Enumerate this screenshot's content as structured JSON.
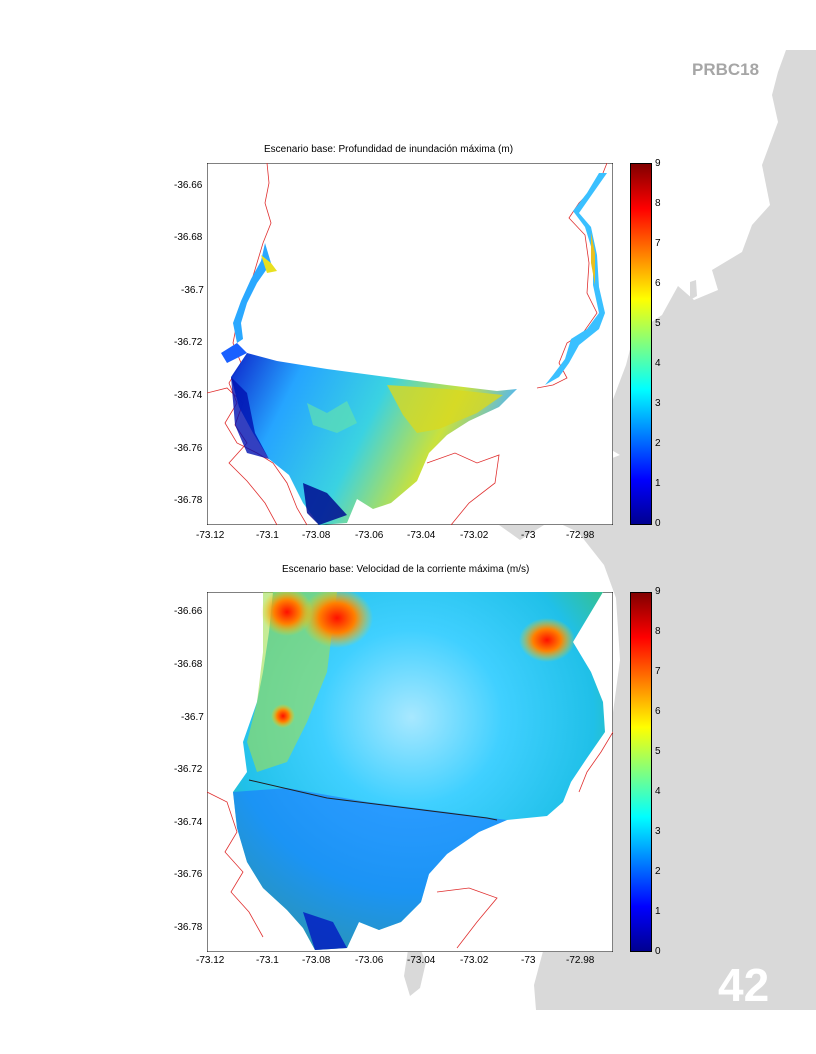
{
  "document": {
    "code": "PRBC18",
    "page_number": "42"
  },
  "chart_data": [
    {
      "type": "heatmap",
      "title": "Escenario base:  Profundidad de inundación  máxima (m)",
      "x_ticks": [
        "-73.12",
        "-73.1",
        "-73.08",
        "-73.06",
        "-73.04",
        "-73.02",
        "-73",
        "-72.98"
      ],
      "y_ticks": [
        "-36.66",
        "-36.68",
        "-36.7",
        "-36.72",
        "-36.74",
        "-36.76",
        "-36.78"
      ],
      "xlim": [
        -73.124,
        -72.964
      ],
      "ylim": [
        -36.79,
        -36.652
      ],
      "colorbar": {
        "ticks": [
          "0",
          "1",
          "2",
          "3",
          "4",
          "5",
          "6",
          "7",
          "8",
          "9"
        ],
        "range": [
          0,
          9
        ],
        "colormap": "jet"
      }
    },
    {
      "type": "heatmap",
      "title": "Escenario base:  Velocidad de la corriente máxima (m/s)",
      "x_ticks": [
        "-73.12",
        "-73.1",
        "-73.08",
        "-73.06",
        "-73.04",
        "-73.02",
        "-73",
        "-72.98"
      ],
      "y_ticks": [
        "-36.66",
        "-36.68",
        "-36.7",
        "-36.72",
        "-36.74",
        "-36.76",
        "-36.78"
      ],
      "xlim": [
        -73.124,
        -72.964
      ],
      "ylim": [
        -36.79,
        -36.652
      ],
      "colorbar": {
        "ticks": [
          "0",
          "1",
          "2",
          "3",
          "4",
          "5",
          "6",
          "7",
          "8",
          "9"
        ],
        "range": [
          0,
          9
        ],
        "colormap": "jet"
      }
    }
  ]
}
